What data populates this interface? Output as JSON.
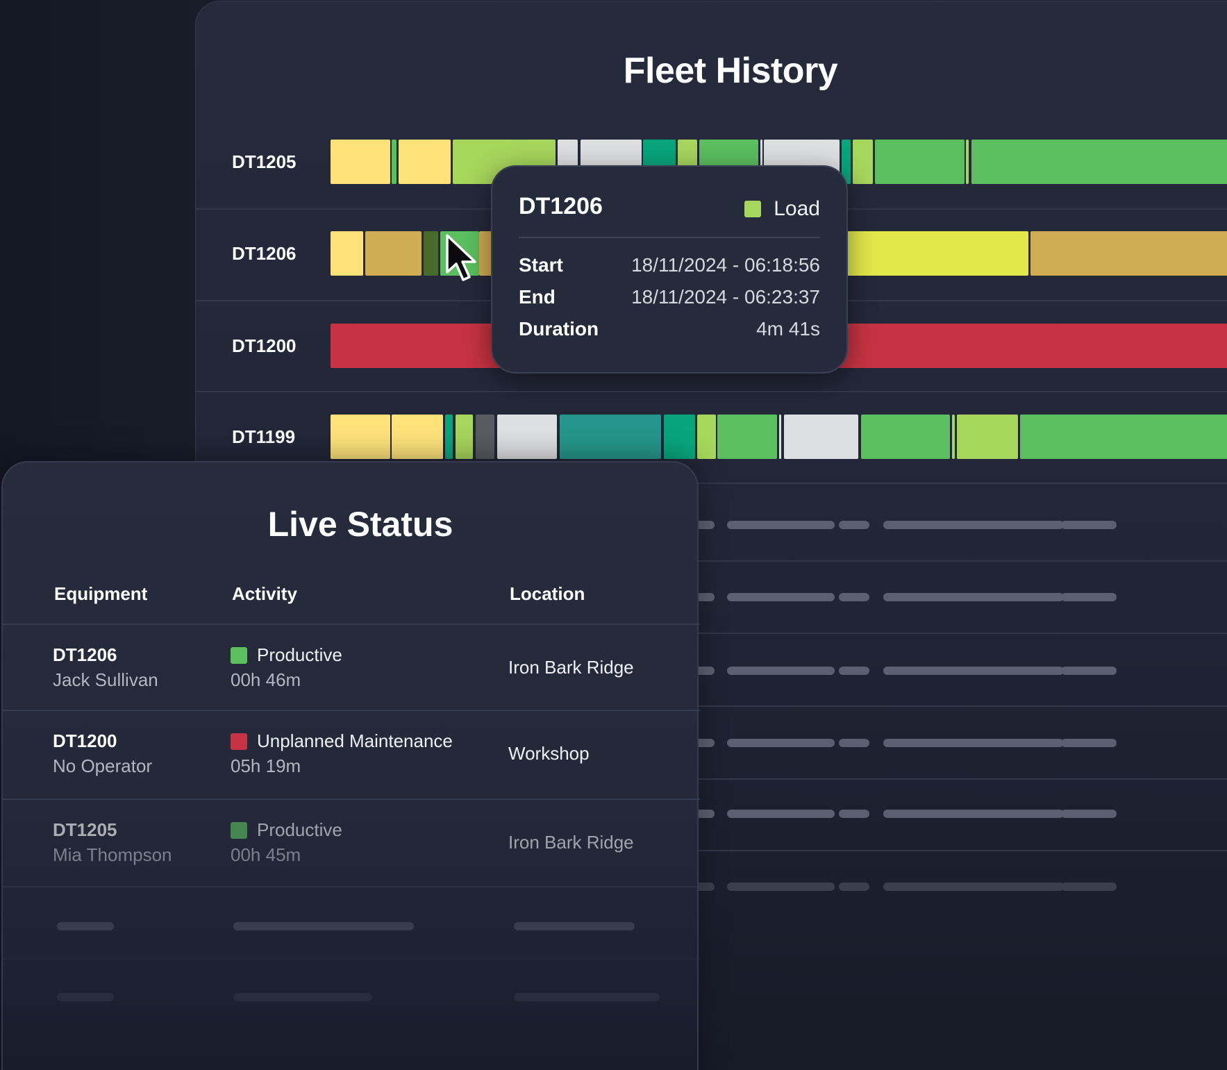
{
  "fleet_history": {
    "title": "Fleet History",
    "tracks": [
      {
        "id": "DT1205",
        "segments": [
          {
            "start": 0.0,
            "end": 0.064,
            "color": "#fde27a"
          },
          {
            "start": 0.066,
            "end": 0.071,
            "color": "#5bbf5f"
          },
          {
            "start": 0.073,
            "end": 0.129,
            "color": "#fde27a"
          },
          {
            "start": 0.131,
            "end": 0.242,
            "color": "#a7d65c"
          },
          {
            "start": 0.244,
            "end": 0.266,
            "color": "#dedfe1"
          },
          {
            "start": 0.269,
            "end": 0.334,
            "color": "#dedfe1"
          },
          {
            "start": 0.336,
            "end": 0.371,
            "color": "#08a57c"
          },
          {
            "start": 0.373,
            "end": 0.394,
            "color": "#a7d65c"
          },
          {
            "start": 0.396,
            "end": 0.46,
            "color": "#5bbf5f"
          },
          {
            "start": 0.462,
            "end": 0.464,
            "color": "#dedfe1"
          },
          {
            "start": 0.466,
            "end": 0.547,
            "color": "#dedfe1"
          },
          {
            "start": 0.549,
            "end": 0.559,
            "color": "#08a57c"
          },
          {
            "start": 0.561,
            "end": 0.583,
            "color": "#a7d65c"
          },
          {
            "start": 0.585,
            "end": 0.681,
            "color": "#5bbf5f"
          },
          {
            "start": 0.683,
            "end": 0.686,
            "color": "#a7d65c"
          },
          {
            "start": 0.689,
            "end": 1.0,
            "color": "#5bbf5f"
          }
        ]
      },
      {
        "id": "DT1206",
        "segments": [
          {
            "start": 0.0,
            "end": 0.035,
            "color": "#fde27a"
          },
          {
            "start": 0.037,
            "end": 0.098,
            "color": "#d0ad52"
          },
          {
            "start": 0.1,
            "end": 0.116,
            "color": "#486a2b"
          },
          {
            "start": 0.118,
            "end": 0.16,
            "color": "#5bbf5f"
          },
          {
            "start": 0.16,
            "end": 0.545,
            "color": "#d0ad52"
          },
          {
            "start": 0.547,
            "end": 0.75,
            "color": "#e3e84a"
          },
          {
            "start": 0.752,
            "end": 1.0,
            "color": "#d0ad52"
          }
        ]
      },
      {
        "id": "DT1200",
        "segments": [
          {
            "start": 0.0,
            "end": 1.0,
            "color": "#c73342"
          }
        ]
      },
      {
        "id": "DT1199",
        "segments": [
          {
            "start": 0.0,
            "end": 0.064,
            "color": "#fde27a"
          },
          {
            "start": 0.066,
            "end": 0.121,
            "color": "#fde27a"
          },
          {
            "start": 0.123,
            "end": 0.131,
            "color": "#08a57c"
          },
          {
            "start": 0.134,
            "end": 0.153,
            "color": "#a7d65c"
          },
          {
            "start": 0.156,
            "end": 0.176,
            "color": "#585b5f"
          },
          {
            "start": 0.179,
            "end": 0.243,
            "color": "#dedfe1"
          },
          {
            "start": 0.246,
            "end": 0.355,
            "color": "#25968b"
          },
          {
            "start": 0.358,
            "end": 0.392,
            "color": "#08a57c"
          },
          {
            "start": 0.394,
            "end": 0.414,
            "color": "#a7d65c"
          },
          {
            "start": 0.416,
            "end": 0.48,
            "color": "#5bbf5f"
          },
          {
            "start": 0.482,
            "end": 0.484,
            "color": "#dedfe1"
          },
          {
            "start": 0.487,
            "end": 0.567,
            "color": "#dedfe1"
          },
          {
            "start": 0.57,
            "end": 0.666,
            "color": "#5bbf5f"
          },
          {
            "start": 0.668,
            "end": 0.671,
            "color": "#a7d65c"
          },
          {
            "start": 0.673,
            "end": 0.739,
            "color": "#a7d65c"
          },
          {
            "start": 0.741,
            "end": 1.0,
            "color": "#5bbf5f"
          }
        ]
      }
    ]
  },
  "tooltip": {
    "equipment": "DT1206",
    "activity": "Load",
    "activity_color": "#a7d65c",
    "start_label": "Start",
    "start_value": "18/11/2024 - 06:18:56",
    "end_label": "End",
    "end_value": "18/11/2024 - 06:23:37",
    "duration_label": "Duration",
    "duration_value": "4m 41s"
  },
  "live_status": {
    "title": "Live Status",
    "columns": {
      "equipment": "Equipment",
      "activity": "Activity",
      "location": "Location"
    },
    "rows": [
      {
        "equipment": "DT1206",
        "operator": "Jack Sullivan",
        "activity": "Productive",
        "activity_color": "#5bbf5f",
        "duration": "00h 46m",
        "location": "Iron Bark Ridge"
      },
      {
        "equipment": "DT1200",
        "operator": "No Operator",
        "activity": "Unplanned Maintenance",
        "activity_color": "#c73342",
        "duration": "05h 19m",
        "location": "Workshop"
      },
      {
        "equipment": "DT1205",
        "operator": "Mia Thompson",
        "activity": "Productive",
        "activity_color": "#5bbf5f",
        "duration": "00h 45m",
        "location": "Iron Bark Ridge"
      }
    ]
  },
  "icons": {
    "cursor": "arrow-cursor-icon"
  }
}
